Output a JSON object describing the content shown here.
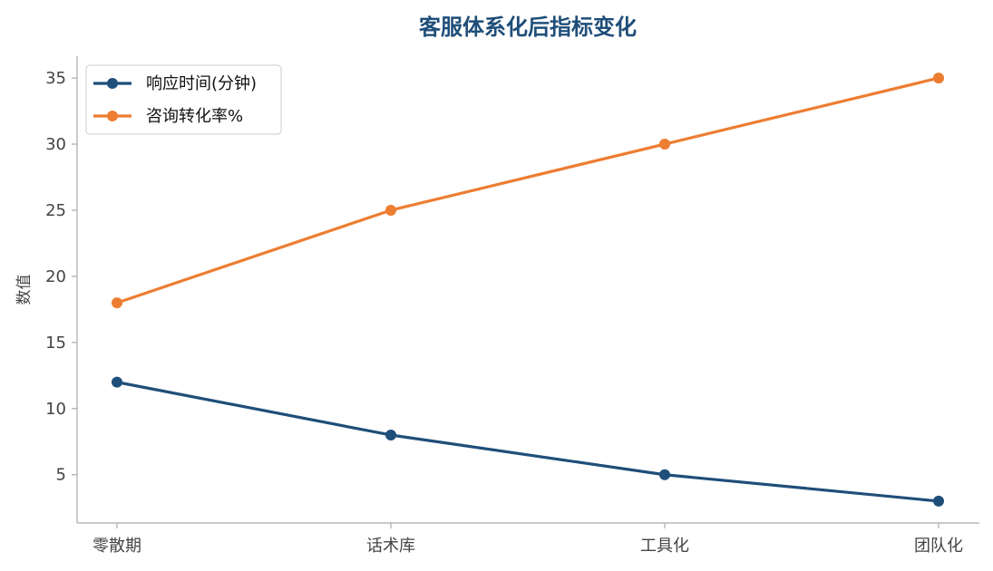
{
  "chart_data": {
    "type": "line",
    "title": "客服体系化后指标变化",
    "xlabel": "",
    "ylabel": "数值",
    "categories": [
      "零散期",
      "话术库",
      "工具化",
      "团队化"
    ],
    "series": [
      {
        "name": "响应时间(分钟)",
        "values": [
          12,
          8,
          5,
          3
        ],
        "color": "#1f4e79"
      },
      {
        "name": "咨询转化率%",
        "values": [
          18,
          25,
          30,
          35
        ],
        "color": "#ed7d31"
      }
    ],
    "ylim": [
      1.35,
      36.65
    ],
    "yticks": [
      5,
      10,
      15,
      20,
      25,
      30,
      35
    ],
    "grid": false,
    "legend": "top-left"
  },
  "colors": {
    "title": "#1f4e79",
    "axis": "#aaaaaa"
  }
}
